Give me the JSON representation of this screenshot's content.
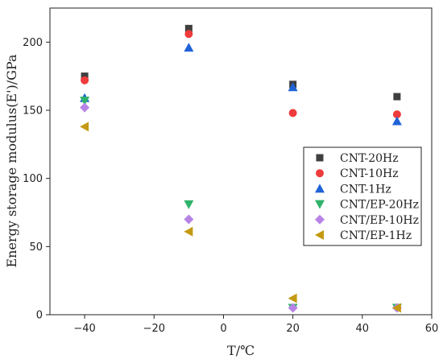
{
  "chart_data": {
    "type": "scatter",
    "title": "",
    "xlabel": "T/℃",
    "ylabel": "Energy storage modulus(E')/GPa",
    "xlim": [
      -50,
      60
    ],
    "ylim": [
      0,
      225
    ],
    "xticks": [
      -40,
      -20,
      0,
      20,
      40,
      60
    ],
    "yticks": [
      0,
      50,
      100,
      150,
      200
    ],
    "grid": false,
    "legend_position": "right",
    "x": [
      -40,
      -10,
      20,
      50
    ],
    "series": [
      {
        "name": "CNT-20Hz",
        "marker": "square",
        "color": "#3f3f3f",
        "values": [
          175,
          210,
          169,
          160
        ]
      },
      {
        "name": "CNT-10Hz",
        "marker": "circle",
        "color": "#ee3b3b",
        "values": [
          172,
          206,
          148,
          147
        ]
      },
      {
        "name": "CNT-1Hz",
        "marker": "triangle-up",
        "color": "#1f63d6",
        "values": [
          159,
          196,
          167,
          142
        ]
      },
      {
        "name": "CNT/EP-20Hz",
        "marker": "triangle-down",
        "color": "#2fb36b",
        "values": [
          157,
          81,
          5,
          5
        ]
      },
      {
        "name": "CNT/EP-10Hz",
        "marker": "diamond",
        "color": "#b784e6",
        "values": [
          152,
          70,
          5,
          5
        ]
      },
      {
        "name": "CNT/EP-1Hz",
        "marker": "triangle-left",
        "color": "#c49a12",
        "values": [
          138,
          61,
          12,
          5
        ]
      }
    ]
  }
}
